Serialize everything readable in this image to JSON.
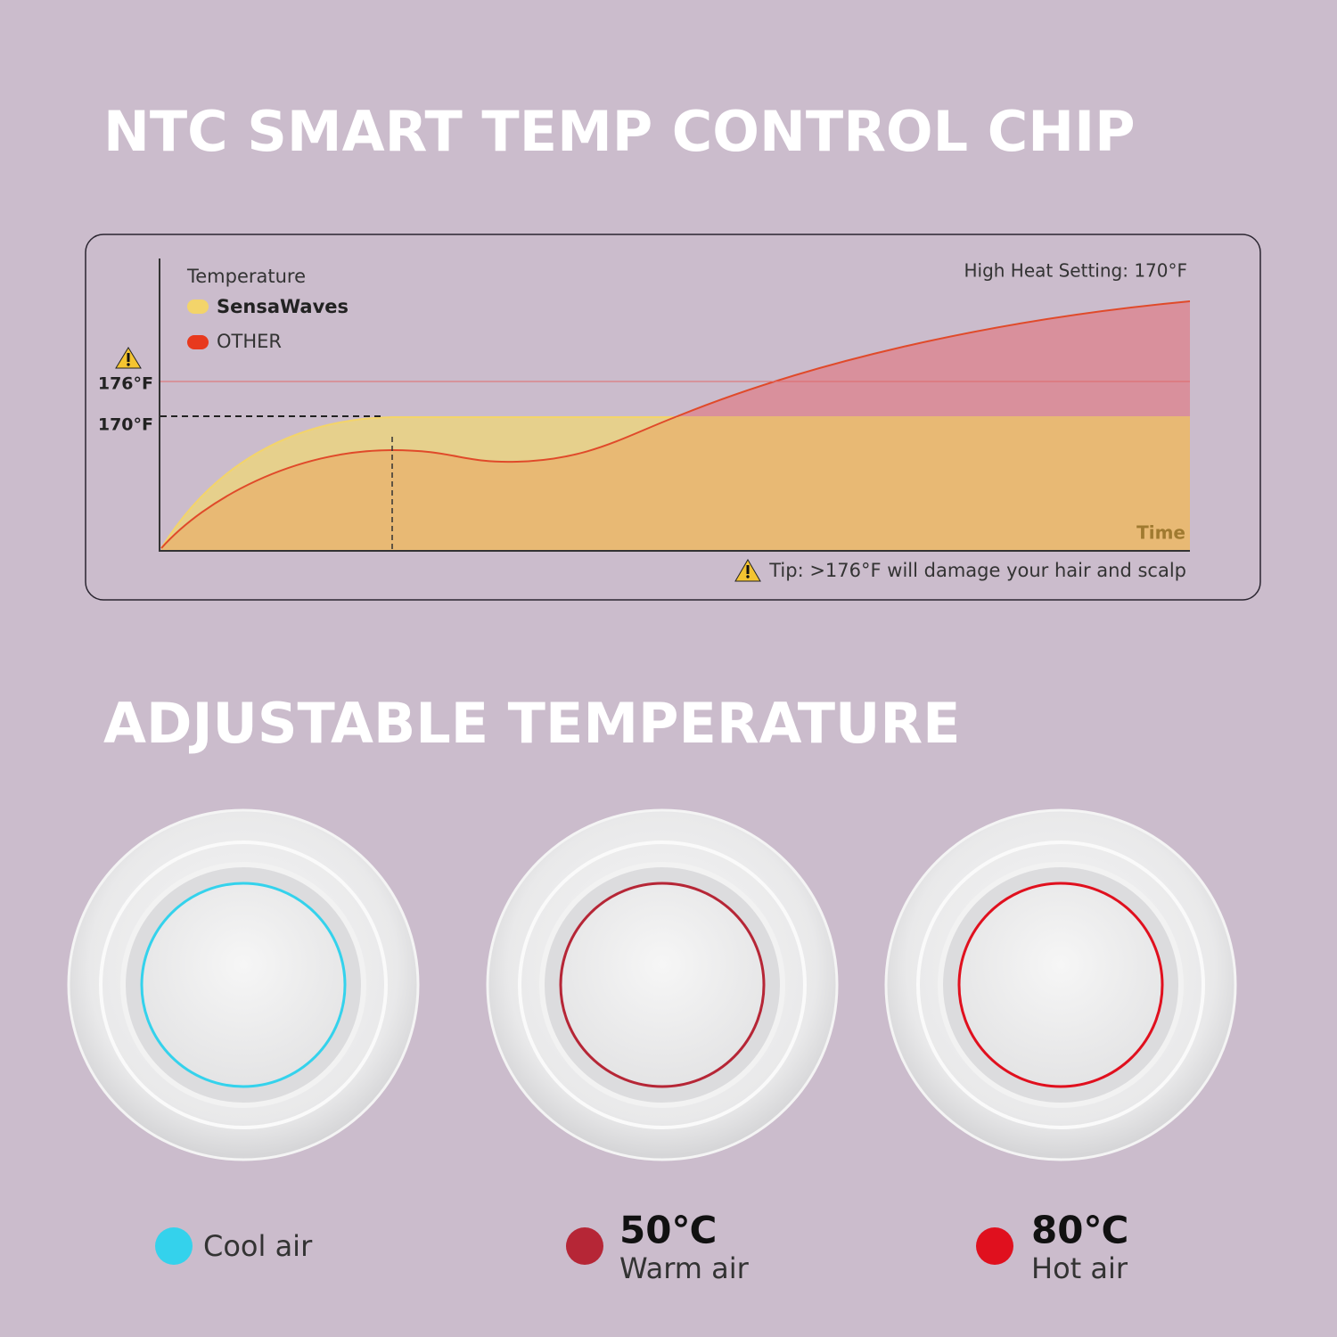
{
  "chart_section": {
    "title": "NTC SMART TEMP CONTROL CHIP",
    "y_axis_label": "Temperature",
    "legend": [
      {
        "name": "SensaWaves",
        "color": "#f3d46a"
      },
      {
        "name": "OTHER",
        "color": "#e8391d"
      }
    ],
    "tick_labels": [
      "176°F",
      "170°F"
    ],
    "setting_note": "High Heat Setting: 170°F",
    "x_axis_label": "Time",
    "tip": "Tip: >176°F will damage your hair and scalp"
  },
  "temperature_section": {
    "title": "ADJUSTABLE TEMPERATURE",
    "modes": [
      {
        "name": "Cool air",
        "color": "#34d2ec"
      },
      {
        "temp": "50℃",
        "name": "Warm air",
        "color": "#b62636"
      },
      {
        "temp": "80℃",
        "name": "Hot air",
        "color": "#e0101e"
      }
    ]
  }
}
